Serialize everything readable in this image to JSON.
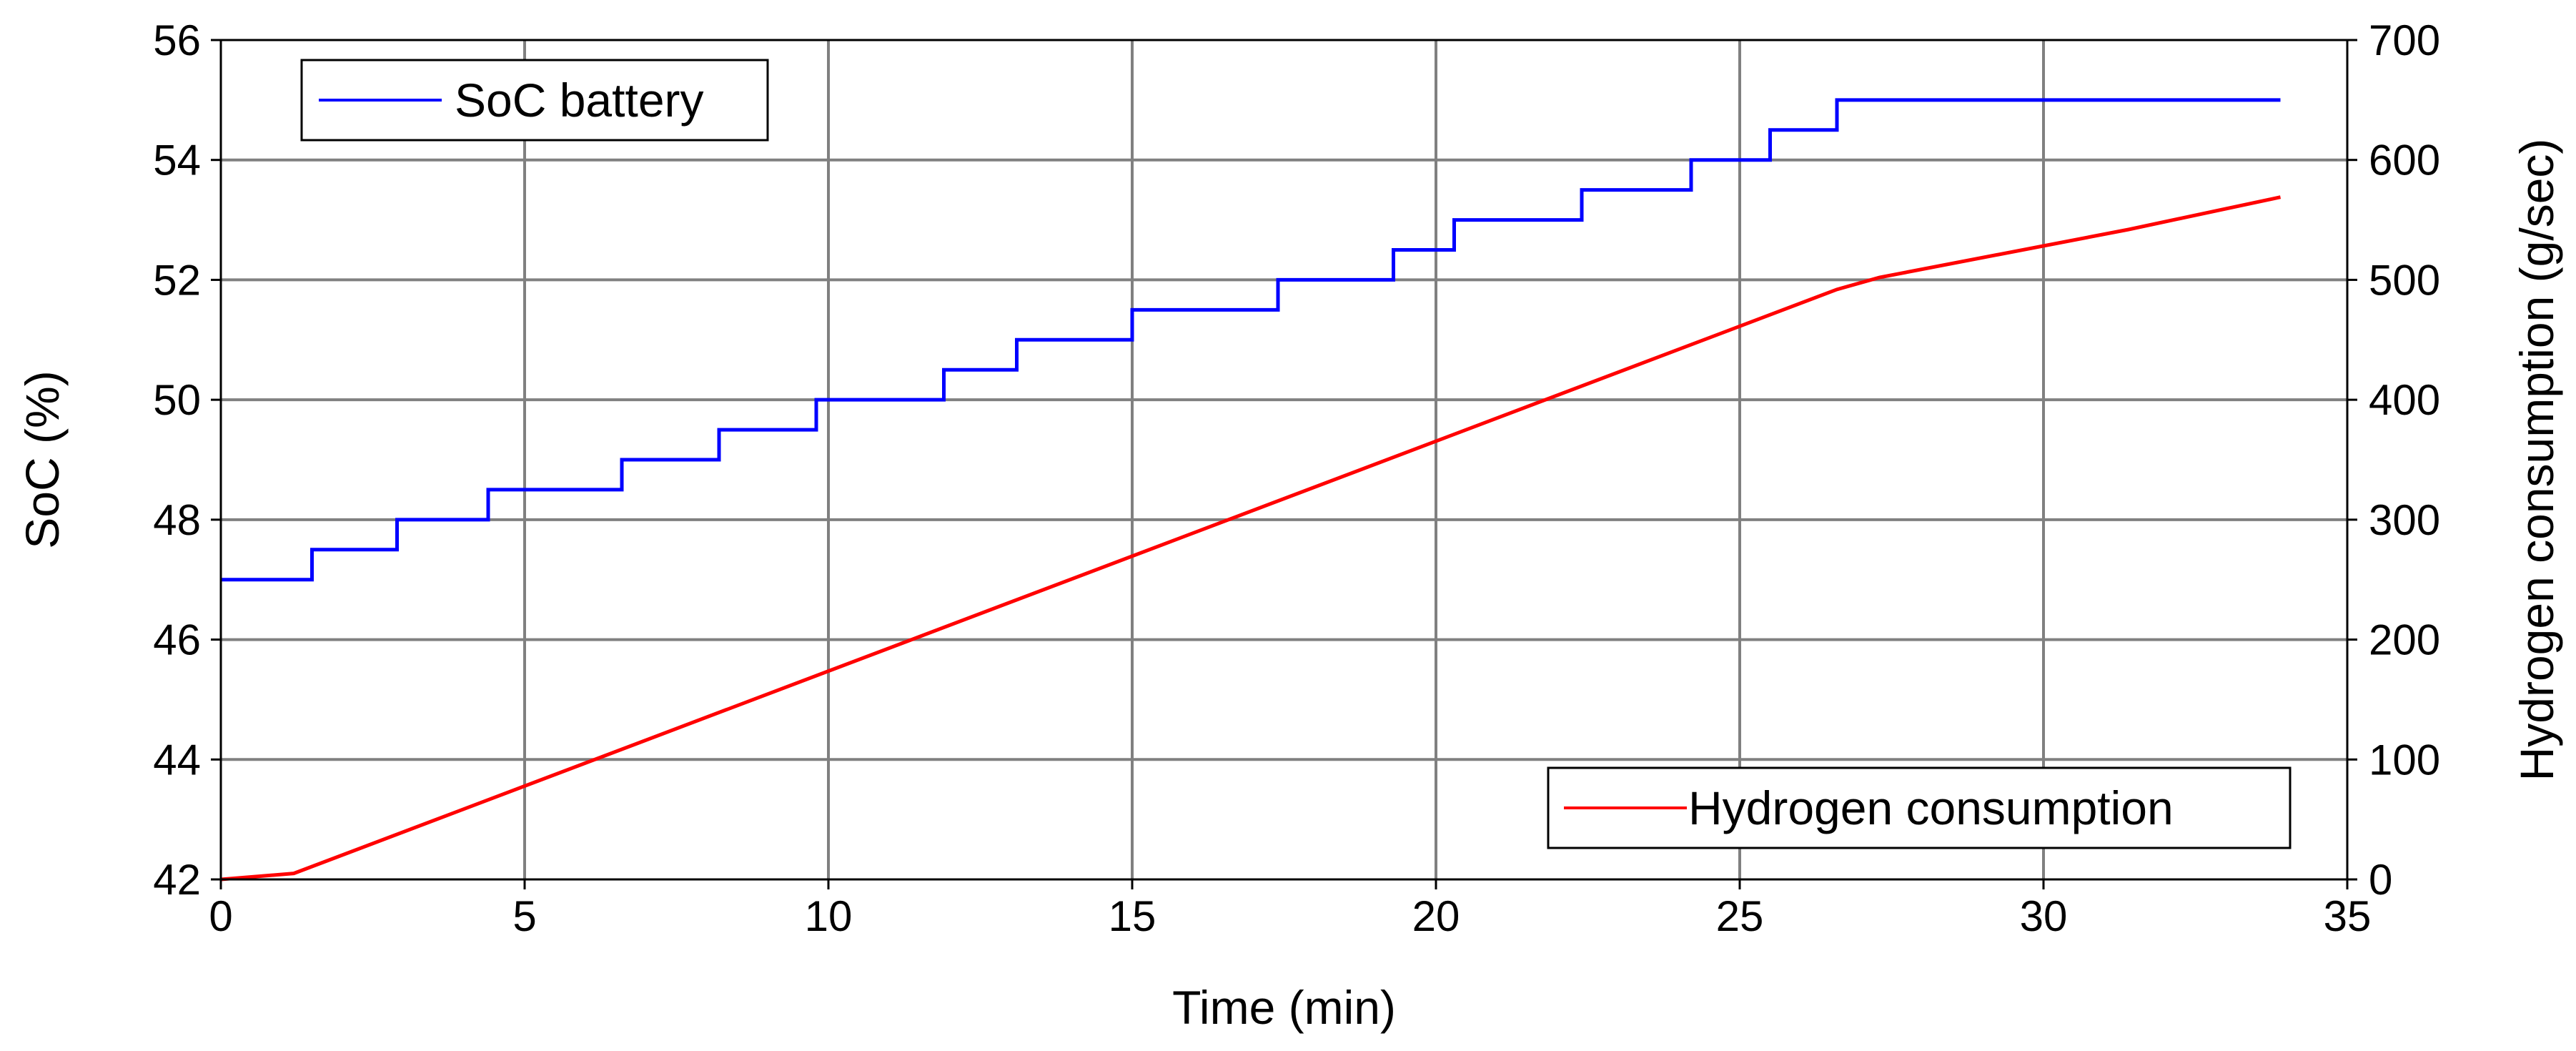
{
  "chart_data": {
    "type": "line",
    "xlabel": "Time (min)",
    "ylabel_left": "SoC (%)",
    "ylabel_right": "Hydrogen consumption (g/sec)",
    "xlim": [
      0,
      35
    ],
    "ylim_left": [
      42,
      56
    ],
    "ylim_right": [
      0,
      700
    ],
    "xticks": [
      0,
      5,
      10,
      15,
      20,
      25,
      30,
      35
    ],
    "yticks_left": [
      42,
      44,
      46,
      48,
      50,
      52,
      54,
      56
    ],
    "yticks_right": [
      0,
      100,
      200,
      300,
      400,
      500,
      600,
      700
    ],
    "grid": true,
    "legend_left": {
      "placement": "top-left",
      "label": "SoC battery"
    },
    "legend_right": {
      "placement": "bottom-right",
      "label": "Hydrogen consumption"
    },
    "series": [
      {
        "name": "SoC battery",
        "axis": "left",
        "color": "#0000ff",
        "step": true,
        "x": [
          0,
          1.5,
          2.9,
          4.4,
          6.6,
          8.2,
          9.8,
          11.9,
          13.1,
          15.0,
          17.4,
          19.3,
          20.3,
          22.4,
          24.2,
          25.5,
          26.6,
          33.9
        ],
        "y": [
          47.0,
          47.5,
          48.0,
          48.5,
          49.0,
          49.5,
          50.0,
          50.5,
          51.0,
          51.5,
          52.0,
          52.5,
          53.0,
          53.5,
          54.0,
          54.5,
          55.0,
          55.0
        ]
      },
      {
        "name": "Hydrogen consumption",
        "axis": "right",
        "color": "#ff0000",
        "step": false,
        "x": [
          0,
          1.2,
          26.6,
          27.3,
          31.4,
          33.9
        ],
        "y": [
          0,
          5,
          492,
          502,
          542,
          569
        ]
      }
    ]
  }
}
